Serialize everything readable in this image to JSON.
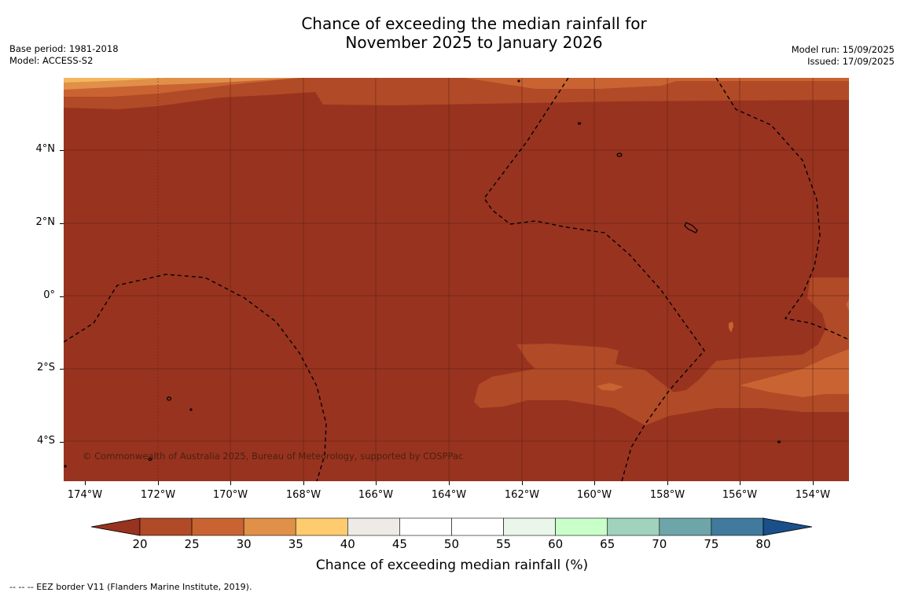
{
  "header": {
    "title_line1": "Chance of exceeding the median rainfall for",
    "title_line2": "November 2025 to January 2026",
    "base_period": "Base period: 1981-2018",
    "model": "Model: ACCESS-S2",
    "model_run": "Model run: 15/09/2025",
    "issued": "Issued: 17/09/2025"
  },
  "map": {
    "lat_labels": [
      "4°N",
      "2°N",
      "0°",
      "2°S",
      "4°S"
    ],
    "lon_labels": [
      "174°W",
      "172°W",
      "170°W",
      "168°W",
      "166°W",
      "164°W",
      "162°W",
      "160°W",
      "158°W",
      "156°W",
      "154°W"
    ],
    "copyright": "© Commonwealth of Australia 2025, Bureau of Meteorology, supported by COSPPac",
    "background_color": "#983320"
  },
  "colorbar": {
    "labels": [
      "20",
      "25",
      "30",
      "35",
      "40",
      "45",
      "50",
      "55",
      "60",
      "65",
      "70",
      "75",
      "80"
    ],
    "colors": [
      "#983320",
      "#b14a26",
      "#c96432",
      "#e09048",
      "#fecb6e",
      "#eeeae6",
      "#ffffff",
      "#ffffff",
      "#e9f6e9",
      "#c9ffc9",
      "#a0d2bd",
      "#6ea5a9",
      "#417a9c",
      "#1a4f8a"
    ],
    "title": "Chance of exceeding median rainfall (%)"
  },
  "footer": {
    "legend": "--  --  -- EEZ border V11 (Flanders Marine Institute, 2019)."
  }
}
